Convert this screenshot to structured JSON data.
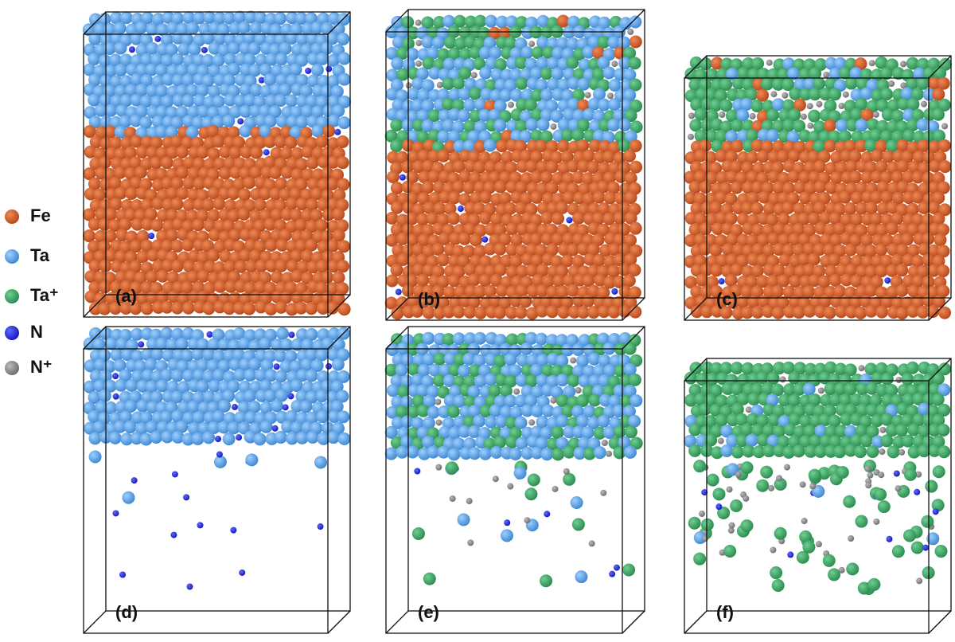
{
  "legend": [
    {
      "label": "Fe"
    },
    {
      "label": "Ta"
    },
    {
      "label": "Ta⁺"
    },
    {
      "label": "N"
    },
    {
      "label": "N⁺"
    }
  ],
  "panels": [
    {
      "label": "(a)"
    },
    {
      "label": "(b)"
    },
    {
      "label": "(c)"
    },
    {
      "label": "(d)"
    },
    {
      "label": "(e)"
    },
    {
      "label": "(f)"
    }
  ]
}
